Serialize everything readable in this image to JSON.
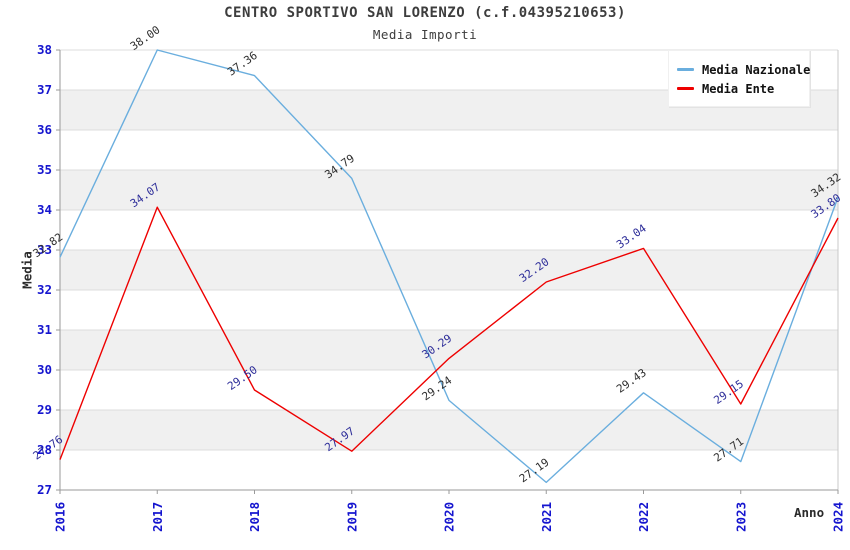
{
  "chart_data": {
    "type": "line",
    "title": "CENTRO SPORTIVO SAN LORENZO (c.f.04395210653)",
    "subtitle": "Media Importi",
    "xlabel": "Anno",
    "ylabel": "Media",
    "categories": [
      "2016",
      "2017",
      "2018",
      "2019",
      "2020",
      "2021",
      "2022",
      "2023",
      "2024"
    ],
    "series": [
      {
        "name": "Media Nazionale",
        "color": "#6aaede",
        "label_color": "#2e2e2e",
        "values": [
          32.82,
          38.0,
          37.36,
          34.79,
          29.24,
          27.19,
          29.43,
          27.71,
          34.32
        ],
        "labels": [
          "32.82",
          "38.00",
          "37.36",
          "34.79",
          "29.24",
          "27.19",
          "29.43",
          "27.71",
          "34.32"
        ]
      },
      {
        "name": "Media Ente",
        "color": "#ee0000",
        "label_color": "#2d2d99",
        "values": [
          27.76,
          34.07,
          29.5,
          27.97,
          30.29,
          32.2,
          33.04,
          29.15,
          33.8
        ],
        "labels": [
          "27.76",
          "34.07",
          "29.50",
          "27.97",
          "30.29",
          "32.20",
          "33.04",
          "29.15",
          "33.80"
        ]
      }
    ],
    "ylim": [
      27,
      38
    ],
    "y_ticks": [
      27,
      28,
      29,
      30,
      31,
      32,
      33,
      34,
      35,
      36,
      37,
      38
    ],
    "grid": true,
    "band_colors": [
      "#ffffff",
      "#f0f0f0"
    ],
    "gridline_color": "#dcdcdc",
    "axis_color": "#9a9a9a",
    "tick_label_color": "#1515cf",
    "legend_position": "top-right"
  }
}
